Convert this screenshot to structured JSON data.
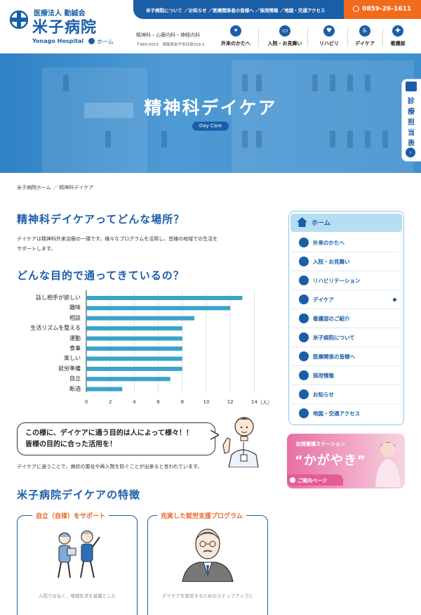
{
  "header": {
    "logo_sub": "医療法人 勤誠会",
    "logo_main": "米子病院",
    "logo_en": "Yonago Hospital",
    "home_label": "ホーム",
    "topbar_links": "米子病院について ／お知らせ ／医療関係者の皆様へ ／採用情報 ／地図・交通アクセス",
    "phone": "0859-26-1611",
    "departments": "精神科・心療内科・神経内科",
    "address": "〒683-0015　鳥取県米子市日原319-1",
    "nav": [
      {
        "label": "外来のかたへ",
        "icon": "walking-person-icon"
      },
      {
        "label": "入院・お見舞い",
        "icon": "bed-icon"
      },
      {
        "label": "リハビリ",
        "icon": "hands-heart-icon"
      },
      {
        "label": "デイケア",
        "icon": "seated-person-icon"
      },
      {
        "label": "看護部",
        "icon": "nurse-icon"
      }
    ]
  },
  "hero": {
    "title": "精神科デイケア",
    "subtitle": "Day Care",
    "side_tab_label": "診療担当表"
  },
  "breadcrumb": {
    "home": "米子病院ホーム",
    "separator": "／",
    "current": "精神科デイケア"
  },
  "intro": {
    "heading": "精神科デイケアってどんな場所？",
    "text_line1": "デイケアは精神科外来治療の一環です。様々なプログラムを活用し、皆様の地域での生活を",
    "text_line2": "サポートします。"
  },
  "purpose": {
    "heading": "どんな目的で通ってきているの？",
    "bubble_line1": "この様に、デイケアに通う目的は人によって様々！！",
    "bubble_line2": "皆様の目的に合った活用を！",
    "after_text": "デイケアに通うことで、病状の悪化や再入院を防ぐことが出来ると言われています。"
  },
  "chart_data": {
    "type": "bar",
    "orientation": "horizontal",
    "categories": [
      "話し相手が欲しい",
      "趣味",
      "相談",
      "生活リズムを整える",
      "運動",
      "食事",
      "楽しい",
      "就労準備",
      "自立",
      "断酒"
    ],
    "values": [
      13,
      12,
      9,
      8,
      8,
      8,
      8,
      8,
      7,
      3
    ],
    "xlim": [
      0,
      14
    ],
    "xticks": [
      "0",
      "2",
      "4",
      "6",
      "8",
      "10",
      "12",
      "14"
    ],
    "xunit": "（人）",
    "bar_color": "#3aa3c9",
    "grid": true
  },
  "features": {
    "heading": "米子病院デイケアの特徴",
    "cards": [
      {
        "title": "自立（自律）をサポート",
        "text": "入院ではなく、地域生活を基盤とした"
      },
      {
        "title": "充実した就労支援プログラム",
        "text": "デイケアを就労するためのステップアップに"
      }
    ]
  },
  "sidebar": {
    "home": "ホーム",
    "items": [
      {
        "label": "外来のかたへ",
        "icon": "walking-person-icon"
      },
      {
        "label": "入院・お見舞い",
        "icon": "bed-icon"
      },
      {
        "label": "リハビリテーション",
        "icon": "hands-heart-icon"
      },
      {
        "label": "デイケア",
        "icon": "seated-person-icon",
        "active": true
      },
      {
        "label": "看護部のご紹介",
        "icon": "nurse-icon"
      },
      {
        "label": "米子病院について",
        "icon": "hospital-icon"
      },
      {
        "label": "医療関係の皆様へ",
        "icon": "doctor-icon"
      },
      {
        "label": "採用情報",
        "icon": "people-icon"
      },
      {
        "label": "お知らせ",
        "icon": "info-icon"
      },
      {
        "label": "地図・交通アクセス",
        "icon": "map-pin-icon"
      }
    ]
  },
  "banner": {
    "small": "訪問看護ステーション",
    "big": "“かがやき”",
    "button": "ご案内ページ"
  },
  "colors": {
    "brand_blue": "#1a5ea8",
    "orange": "#f26b1d",
    "chart_bar": "#3aa3c9",
    "banner_pink": "#e86fa4"
  }
}
